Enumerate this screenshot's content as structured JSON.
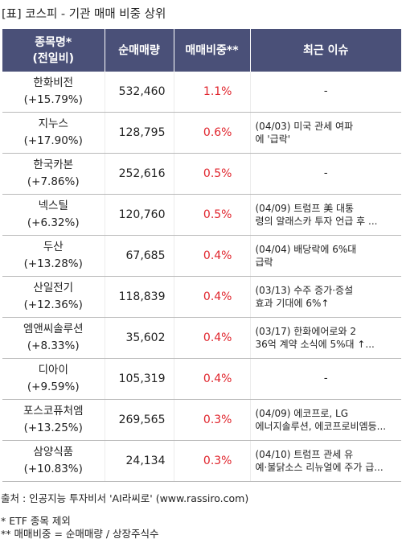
{
  "title": "[표] 코스피 - 기관 매매 비중 상위",
  "headers": {
    "name_line1": "종목명*",
    "name_line2": "(전일비)",
    "net_volume": "순매매량",
    "ratio": "매매비중**",
    "issue": "최근 이슈"
  },
  "rows": [
    {
      "name": "한화비전",
      "change": "(+15.79%)",
      "volume": "532,460",
      "ratio": "1.1%",
      "issue1": "-",
      "issue2": ""
    },
    {
      "name": "지누스",
      "change": "(+17.90%)",
      "volume": "128,795",
      "ratio": "0.6%",
      "issue1": "(04/03) 미국 관세 여파",
      "issue2": "에 '급락'"
    },
    {
      "name": "한국카본",
      "change": "(+7.86%)",
      "volume": "252,616",
      "ratio": "0.5%",
      "issue1": "-",
      "issue2": ""
    },
    {
      "name": "넥스틸",
      "change": "(+6.32%)",
      "volume": "120,760",
      "ratio": "0.5%",
      "issue1": "(04/09) 트럼프 美 대통",
      "issue2": "령의 알래스카 투자 언급 후 ..."
    },
    {
      "name": "두산",
      "change": "(+13.28%)",
      "volume": "67,685",
      "ratio": "0.4%",
      "issue1": "(04/04) 배당락에 6%대",
      "issue2": " 급락"
    },
    {
      "name": "산일전기",
      "change": "(+12.36%)",
      "volume": "118,839",
      "ratio": "0.4%",
      "issue1": "(03/13) 수주 증가·증설",
      "issue2": " 효과 기대에 6%↑"
    },
    {
      "name": "엠앤씨솔루션",
      "change": "(+8.33%)",
      "volume": "35,602",
      "ratio": "0.4%",
      "issue1": "(03/17) 한화에어로와 2",
      "issue2": "36억 계약 소식에 5%대 ↑..."
    },
    {
      "name": "디아이",
      "change": "(+9.59%)",
      "volume": "105,319",
      "ratio": "0.4%",
      "issue1": "-",
      "issue2": ""
    },
    {
      "name": "포스코퓨처엠",
      "change": "(+13.25%)",
      "volume": "269,565",
      "ratio": "0.3%",
      "issue1": "(04/09) 에코프로, LG",
      "issue2": "에너지솔루션, 에코프로비엠등..."
    },
    {
      "name": "삼양식품",
      "change": "(+10.83%)",
      "volume": "24,134",
      "ratio": "0.3%",
      "issue1": "(04/10) 트럼프 관세 유",
      "issue2": "예·불닭소스 리뉴얼에 주가 급..."
    }
  ],
  "footer": {
    "source": "출처 : 인공지능 투자비서 'AI라씨로' (www.rassiro.com)",
    "note1": "* ETF 종목 제외",
    "note2": "** 매매비중 = 순매매량 / 상장주식수"
  },
  "colors": {
    "header_bg": "#4a5078",
    "ratio_text": "#e0242c"
  }
}
